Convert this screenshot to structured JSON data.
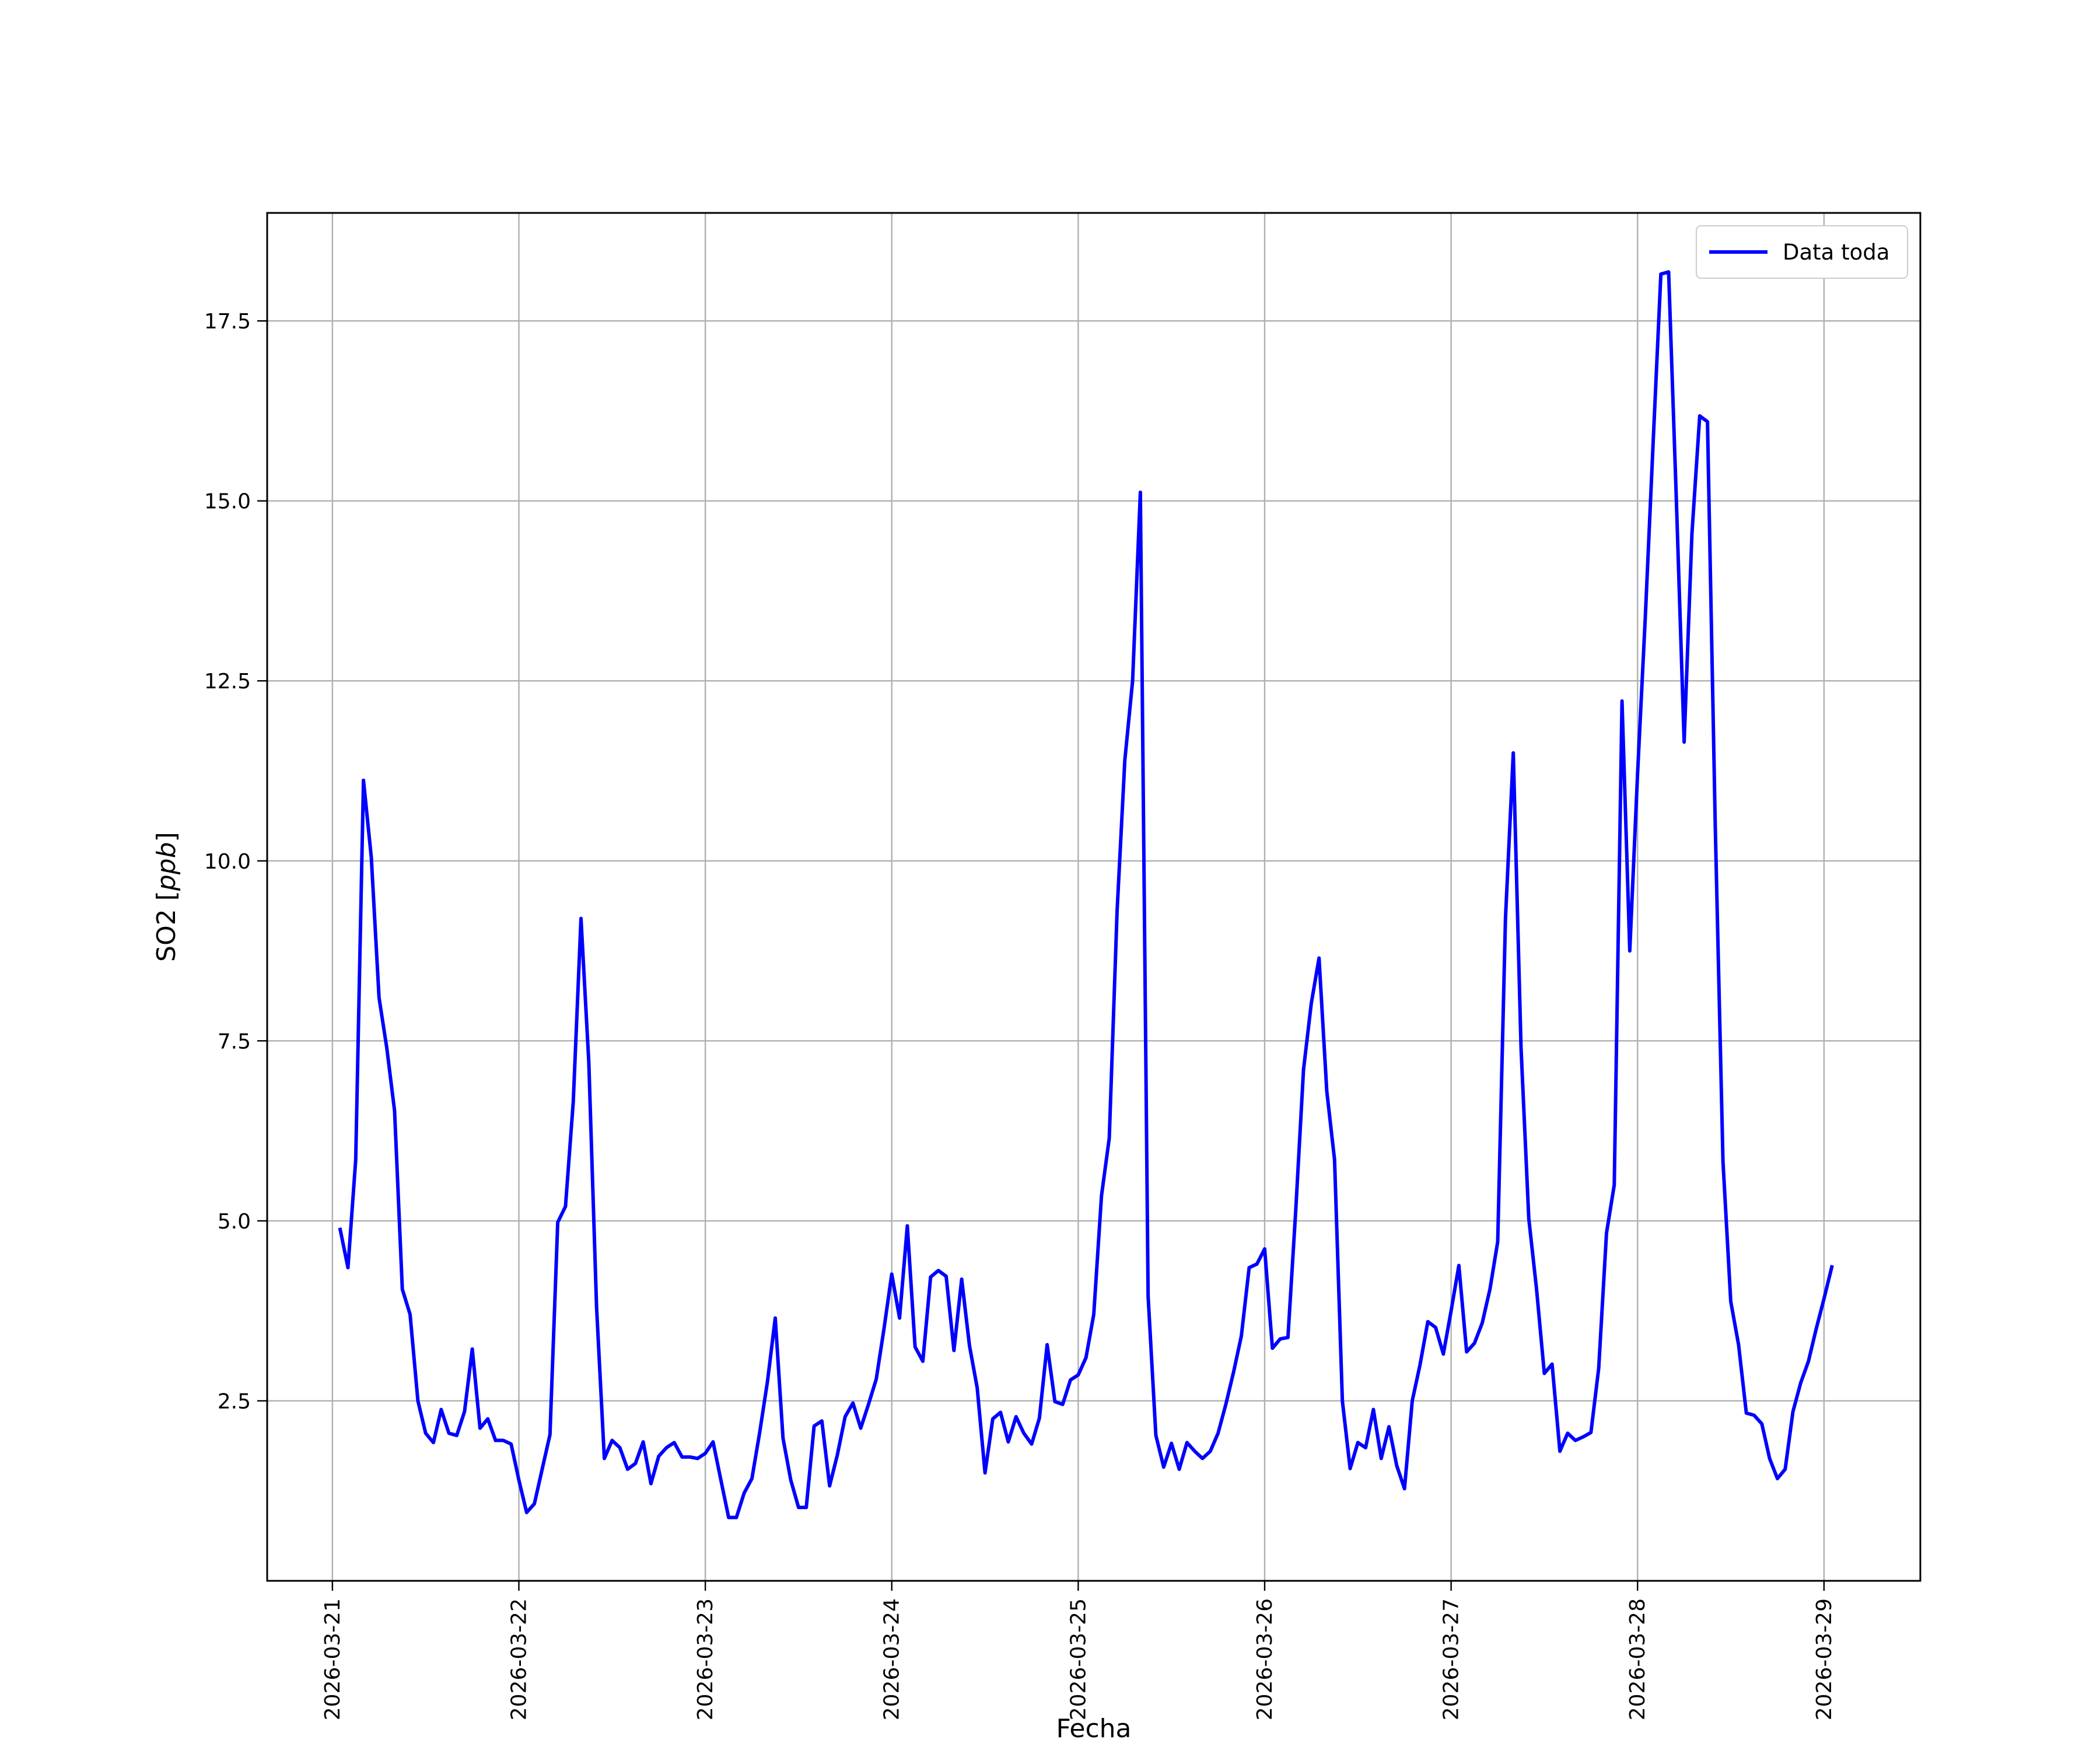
{
  "chart_data": {
    "type": "line",
    "title": "",
    "xlabel": "Fecha",
    "ylabel": "SO2 [ppb]",
    "ylabel_main": "SO2 ",
    "ylabel_unit": "ppb",
    "x_ticks": [
      "2026-03-21",
      "2026-03-22",
      "2026-03-23",
      "2026-03-24",
      "2026-03-25",
      "2026-03-26",
      "2026-03-27",
      "2026-03-28",
      "2026-03-29"
    ],
    "y_ticks": [
      "2.5",
      "5.0",
      "7.5",
      "10.0",
      "12.5",
      "15.0",
      "17.5"
    ],
    "xlim": [
      "2026-03-20 15:36",
      "2026-03-29 12:24"
    ],
    "ylim": [
      0.0,
      19.0
    ],
    "grid": true,
    "legend_position": "top-right",
    "series": [
      {
        "name": "Data toda",
        "color": "#0000ff",
        "start": "2026-03-21 01:00",
        "interval_hours": 1,
        "values": [
          4.88,
          4.35,
          5.85,
          11.12,
          10.05,
          8.1,
          7.4,
          6.53,
          4.05,
          3.7,
          2.5,
          2.05,
          1.92,
          2.38,
          2.05,
          2.02,
          2.35,
          3.22,
          2.12,
          2.25,
          1.95,
          1.95,
          1.9,
          1.4,
          0.95,
          1.07,
          1.55,
          2.03,
          4.98,
          5.2,
          6.65,
          9.2,
          7.2,
          3.8,
          1.7,
          1.95,
          1.85,
          1.55,
          1.63,
          1.93,
          1.35,
          1.73,
          1.85,
          1.92,
          1.72,
          1.72,
          1.7,
          1.77,
          1.93,
          1.4,
          0.88,
          0.88,
          1.22,
          1.42,
          2.06,
          2.77,
          3.65,
          1.98,
          1.4,
          1.02,
          1.02,
          2.15,
          2.22,
          1.32,
          1.75,
          2.28,
          2.47,
          2.12,
          2.45,
          2.8,
          3.5,
          4.26,
          3.65,
          4.93,
          3.25,
          3.05,
          4.22,
          4.31,
          4.23,
          3.2,
          4.19,
          3.27,
          2.68,
          1.5,
          2.25,
          2.34,
          1.93,
          2.28,
          2.05,
          1.9,
          2.26,
          3.28,
          2.49,
          2.45,
          2.79,
          2.86,
          3.1,
          3.7,
          5.35,
          6.15,
          9.3,
          11.4,
          12.5,
          15.12,
          3.95,
          2.02,
          1.58,
          1.91,
          1.55,
          1.92,
          1.8,
          1.7,
          1.8,
          2.05,
          2.45,
          2.9,
          3.4,
          4.35,
          4.4,
          4.61,
          3.23,
          3.36,
          3.38,
          5.15,
          7.1,
          8.02,
          8.65,
          6.8,
          5.85,
          2.5,
          1.56,
          1.92,
          1.85,
          2.38,
          1.7,
          2.14,
          1.6,
          1.28,
          2.5,
          3.0,
          3.6,
          3.52,
          3.15,
          3.75,
          4.38,
          3.18,
          3.3,
          3.58,
          4.05,
          4.71,
          9.2,
          11.5,
          7.4,
          5.03,
          4.05,
          2.88,
          3.01,
          1.8,
          2.05,
          1.95,
          2.0,
          2.06,
          2.95,
          4.83,
          5.5,
          12.22,
          8.75,
          11.2,
          13.4,
          15.8,
          18.15,
          18.18,
          15.0,
          11.65,
          14.55,
          16.18,
          16.1,
          10.5,
          5.82,
          3.88,
          3.28,
          2.33,
          2.3,
          2.18,
          1.7,
          1.42,
          1.55,
          2.35,
          2.75,
          3.05,
          3.5,
          3.92,
          4.36
        ]
      }
    ]
  }
}
